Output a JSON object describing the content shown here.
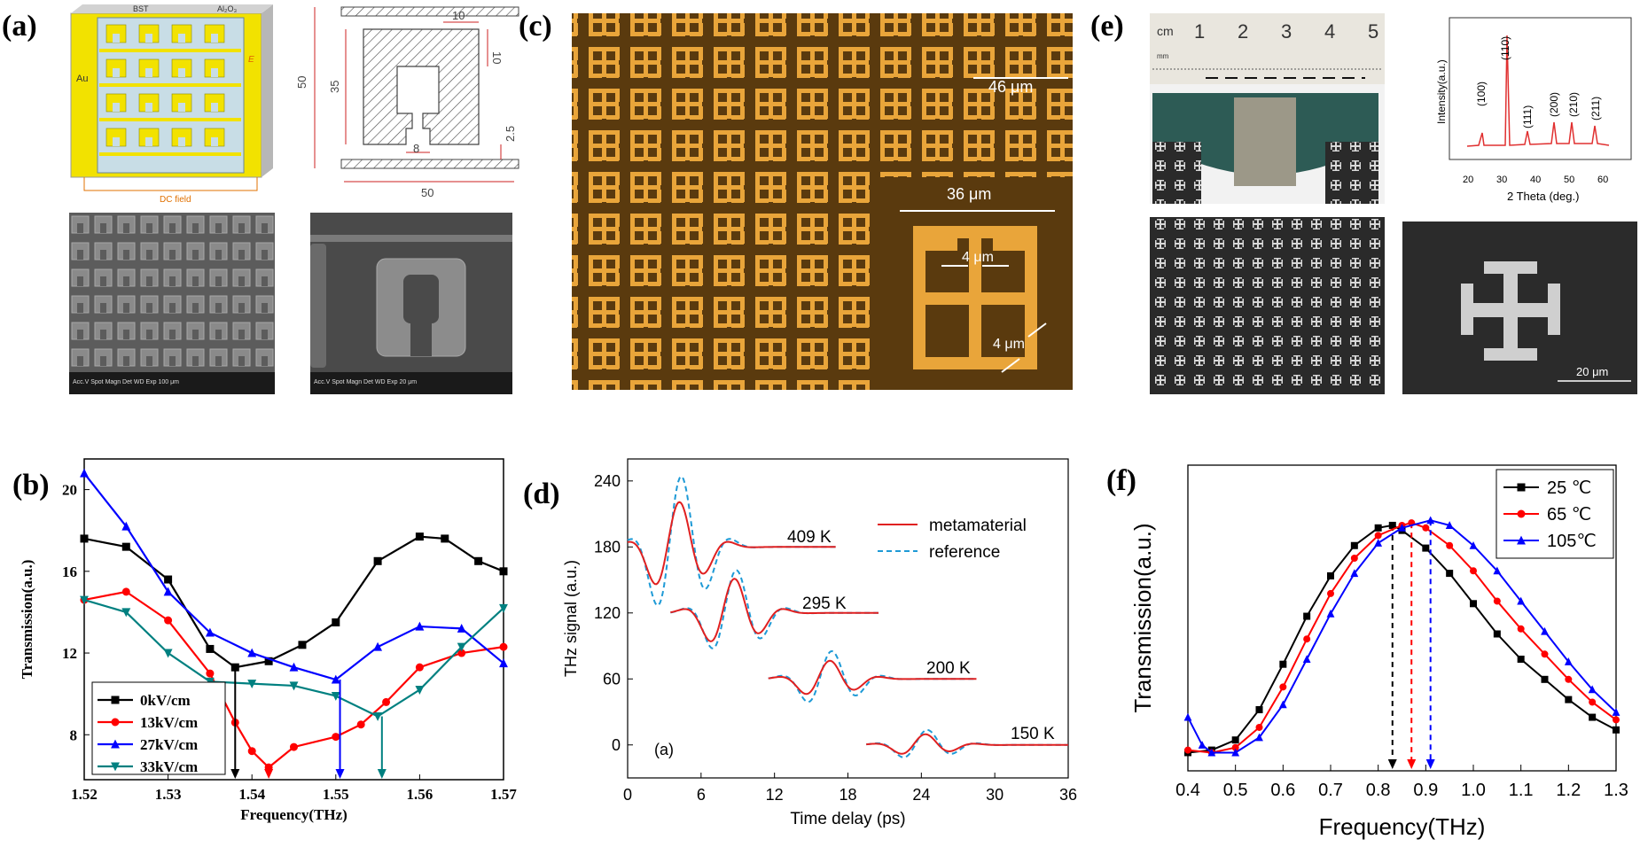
{
  "panel_labels": {
    "a": "(a)",
    "b": "(b)",
    "c": "(c)",
    "d": "(d)",
    "e": "(e)",
    "f": "(f)"
  },
  "panel_a": {
    "schematic_labels": {
      "bst": "BST",
      "al2o3": "Al₂O₃",
      "au": "Au",
      "e_field": "E",
      "dc_field": "DC field"
    },
    "dimensions": {
      "d10a": "10",
      "d10b": "10",
      "d50a": "50",
      "d35": "35",
      "d8": "8",
      "d25": "2.5",
      "d50b": "50"
    },
    "sem_left_caption": "Acc.V  Spot Magn   Det  WD  Exp            100 μm",
    "sem_right_caption": "Acc.V  Spot Magn   Det  WD  Exp            20 μm"
  },
  "panel_c": {
    "scale_46": "46 μm",
    "scale_36": "36 μm",
    "scale_4a": "4 μm",
    "scale_4b": "4 μm"
  },
  "panel_e": {
    "ruler_unit": "cm",
    "ruler_ticks": [
      "1",
      "2",
      "3",
      "4",
      "5"
    ],
    "ruler_mm": "mm",
    "xrd_xlabel": "2 Theta (deg.)",
    "xrd_ylabel": "Intensity(a.u.)",
    "xrd_xticks": [
      "20",
      "30",
      "40",
      "50",
      "60"
    ],
    "xrd_peaks": [
      "(100)",
      "(110)",
      "(111)",
      "(200)",
      "(210)",
      "(211)"
    ],
    "sem_scale": "20 μm"
  },
  "chart_data": [
    {
      "id": "b",
      "type": "line",
      "title": "",
      "xlabel": "Frequency(THz)",
      "ylabel": "Transmission(a.u.)",
      "xlim": [
        1.52,
        1.57
      ],
      "ylim": [
        5.8,
        21.5
      ],
      "xticks": [
        "1.52",
        "1.53",
        "1.54",
        "1.55",
        "1.56",
        "1.57"
      ],
      "yticks": [
        "8",
        "12",
        "16",
        "20"
      ],
      "series": [
        {
          "name": "0kV/cm",
          "color": "#000000",
          "marker": "square",
          "x": [
            1.52,
            1.525,
            1.53,
            1.535,
            1.538,
            1.542,
            1.546,
            1.55,
            1.555,
            1.56,
            1.563,
            1.567,
            1.57
          ],
          "y": [
            17.6,
            17.2,
            15.6,
            12.2,
            11.3,
            11.6,
            12.4,
            13.5,
            16.5,
            17.7,
            17.6,
            16.5,
            16.0
          ]
        },
        {
          "name": "13kV/cm",
          "color": "#ff0000",
          "marker": "circle",
          "x": [
            1.52,
            1.525,
            1.53,
            1.535,
            1.538,
            1.54,
            1.542,
            1.545,
            1.55,
            1.553,
            1.556,
            1.56,
            1.565,
            1.57
          ],
          "y": [
            14.6,
            15.0,
            13.6,
            11.0,
            8.6,
            7.2,
            6.4,
            7.4,
            7.9,
            8.5,
            9.6,
            11.3,
            12.0,
            12.3
          ]
        },
        {
          "name": "27kV/cm",
          "color": "#0000ff",
          "marker": "triangle-up",
          "x": [
            1.52,
            1.525,
            1.53,
            1.535,
            1.54,
            1.545,
            1.55,
            1.555,
            1.56,
            1.565,
            1.57
          ],
          "y": [
            20.8,
            18.2,
            15.0,
            13.0,
            12.0,
            11.3,
            10.7,
            12.3,
            13.3,
            13.2,
            11.5
          ]
        },
        {
          "name": "33kV/cm",
          "color": "#008080",
          "marker": "triangle-down",
          "x": [
            1.52,
            1.525,
            1.53,
            1.535,
            1.54,
            1.545,
            1.55,
            1.555,
            1.56,
            1.565,
            1.57
          ],
          "y": [
            14.6,
            14.0,
            12.0,
            10.6,
            10.5,
            10.4,
            9.9,
            8.9,
            10.2,
            12.3,
            14.2
          ]
        }
      ],
      "arrows": [
        {
          "x": 1.538,
          "y_from": 11.3,
          "color": "#000000"
        },
        {
          "x": 1.542,
          "y_from": 6.4,
          "color": "#ff0000"
        },
        {
          "x": 1.5505,
          "y_from": 10.7,
          "color": "#0000ff"
        },
        {
          "x": 1.5555,
          "y_from": 8.9,
          "color": "#008080"
        }
      ],
      "legend_position": "bottom-left"
    },
    {
      "id": "d",
      "type": "line",
      "title": "",
      "xlabel": "Time delay (ps)",
      "ylabel": "THz signal (a.u.)",
      "xlim": [
        0,
        36
      ],
      "ylim": [
        -30,
        260
      ],
      "xticks": [
        "0",
        "6",
        "12",
        "18",
        "24",
        "30",
        "36"
      ],
      "yticks": [
        "0",
        "60",
        "120",
        "180",
        "240"
      ],
      "inset_label": "(a)",
      "series": [
        {
          "name": "metamaterial",
          "color": "#e02020",
          "dash": "solid"
        },
        {
          "name": "reference",
          "color": "#1e9ad6",
          "dash": "dashed"
        }
      ],
      "traces": [
        {
          "label": "409 K",
          "baseline": 180,
          "t0": 0,
          "t1": 17,
          "peak_t": 4.2,
          "meta_amp": 42,
          "ref_amp": 66
        },
        {
          "label": "295 K",
          "baseline": 120,
          "t0": 3.5,
          "t1": 20.5,
          "peak_t": 8.7,
          "meta_amp": 32,
          "ref_amp": 40
        },
        {
          "label": "200 K",
          "baseline": 60,
          "t0": 11.5,
          "t1": 28.5,
          "peak_t": 16.5,
          "meta_amp": 17,
          "ref_amp": 26
        },
        {
          "label": "150 K",
          "baseline": 0,
          "t0": 19.5,
          "t1": 36,
          "peak_t": 24.3,
          "meta_amp": 10,
          "ref_amp": 14
        }
      ],
      "legend_position": "top-right"
    },
    {
      "id": "f",
      "type": "line",
      "title": "",
      "xlabel": "Frequency(THz)",
      "ylabel": "Transmission(a.u.)",
      "xlim": [
        0.4,
        1.3
      ],
      "ylim": [
        0,
        1
      ],
      "xticks": [
        "0.4",
        "0.5",
        "0.6",
        "0.7",
        "0.8",
        "0.9",
        "1.0",
        "1.1",
        "1.2",
        "1.3"
      ],
      "series": [
        {
          "name": "25 ℃",
          "color": "#000000",
          "marker": "square",
          "peak": 0.83,
          "x": [
            0.4,
            0.45,
            0.5,
            0.55,
            0.6,
            0.65,
            0.7,
            0.75,
            0.8,
            0.83,
            0.85,
            0.9,
            0.95,
            1.0,
            1.05,
            1.1,
            1.15,
            1.2,
            1.25,
            1.3
          ],
          "y": [
            0.03,
            0.04,
            0.08,
            0.2,
            0.38,
            0.57,
            0.73,
            0.85,
            0.92,
            0.93,
            0.91,
            0.84,
            0.74,
            0.62,
            0.5,
            0.4,
            0.32,
            0.24,
            0.17,
            0.12
          ]
        },
        {
          "name": "65 ℃",
          "color": "#ff0000",
          "marker": "circle",
          "peak": 0.87,
          "x": [
            0.4,
            0.45,
            0.5,
            0.55,
            0.6,
            0.65,
            0.7,
            0.75,
            0.8,
            0.85,
            0.87,
            0.9,
            0.95,
            1.0,
            1.05,
            1.1,
            1.15,
            1.2,
            1.25,
            1.3
          ],
          "y": [
            0.04,
            0.03,
            0.05,
            0.13,
            0.29,
            0.48,
            0.66,
            0.8,
            0.89,
            0.93,
            0.94,
            0.92,
            0.85,
            0.75,
            0.63,
            0.52,
            0.42,
            0.32,
            0.23,
            0.16
          ]
        },
        {
          "name": "105℃",
          "color": "#0000ff",
          "marker": "triangle-up",
          "peak": 0.91,
          "x": [
            0.4,
            0.43,
            0.45,
            0.5,
            0.55,
            0.6,
            0.65,
            0.7,
            0.75,
            0.8,
            0.85,
            0.91,
            0.95,
            1.0,
            1.05,
            1.1,
            1.15,
            1.2,
            1.25,
            1.3
          ],
          "y": [
            0.17,
            0.06,
            0.03,
            0.03,
            0.09,
            0.22,
            0.4,
            0.58,
            0.74,
            0.86,
            0.92,
            0.95,
            0.93,
            0.85,
            0.75,
            0.63,
            0.51,
            0.39,
            0.28,
            0.19
          ]
        }
      ],
      "legend_position": "top-right"
    }
  ]
}
